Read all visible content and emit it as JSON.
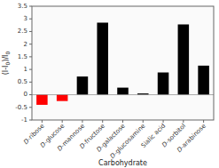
{
  "chart_data": {
    "type": "bar",
    "categories": [
      "D-ribose",
      "D-glucose",
      "D-mannose",
      "D-fructose",
      "D-galactose",
      "D-glucosamine",
      "Sialic acid",
      "D-sorbitol",
      "D-arabinose"
    ],
    "values": [
      -0.4,
      -0.25,
      0.72,
      2.85,
      0.28,
      0.05,
      0.88,
      2.78,
      1.15
    ],
    "colors": [
      "#ff0000",
      "#ff0000",
      "#000000",
      "#000000",
      "#000000",
      "#000000",
      "#000000",
      "#000000",
      "#000000"
    ],
    "ylabel": "(I-I0)/I0",
    "xlabel": "Carbohydrate",
    "ylim": [
      -1.0,
      3.5
    ],
    "yticks": [
      -1.0,
      -0.5,
      0.0,
      0.5,
      1.0,
      1.5,
      2.0,
      2.5,
      3.0,
      3.5
    ]
  }
}
